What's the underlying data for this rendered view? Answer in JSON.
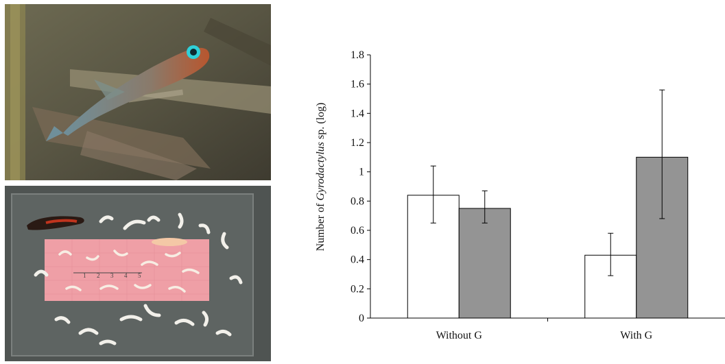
{
  "photos": [
    {
      "subject": "stickleback fish underwater"
    },
    {
      "subject": "stickleback fish and parasitic worms on grid paper"
    }
  ],
  "ruler_marks": [
    "1",
    "2",
    "3",
    "4",
    "5"
  ],
  "chart_data": {
    "type": "bar",
    "categories": [
      "Without G",
      "With G"
    ],
    "series": [
      {
        "fill": "#ffffff",
        "values": [
          0.84,
          0.43
        ],
        "error_low": [
          0.65,
          0.29
        ],
        "error_high": [
          1.04,
          0.58
        ]
      },
      {
        "fill": "#949494",
        "values": [
          0.75,
          1.1
        ],
        "error_low": [
          0.65,
          0.68
        ],
        "error_high": [
          0.87,
          1.56
        ]
      }
    ],
    "ylabel_pre": "Number of ",
    "ylabel_italic": "Gyrodactylus",
    "ylabel_post": " sp. (log)",
    "ylim": [
      0,
      1.8
    ],
    "yticks": [
      "0",
      "0.2",
      "0.4",
      "0.6",
      "0.8",
      "1",
      "1.2",
      "1.4",
      "1.6",
      "1.8"
    ],
    "grid": false
  }
}
